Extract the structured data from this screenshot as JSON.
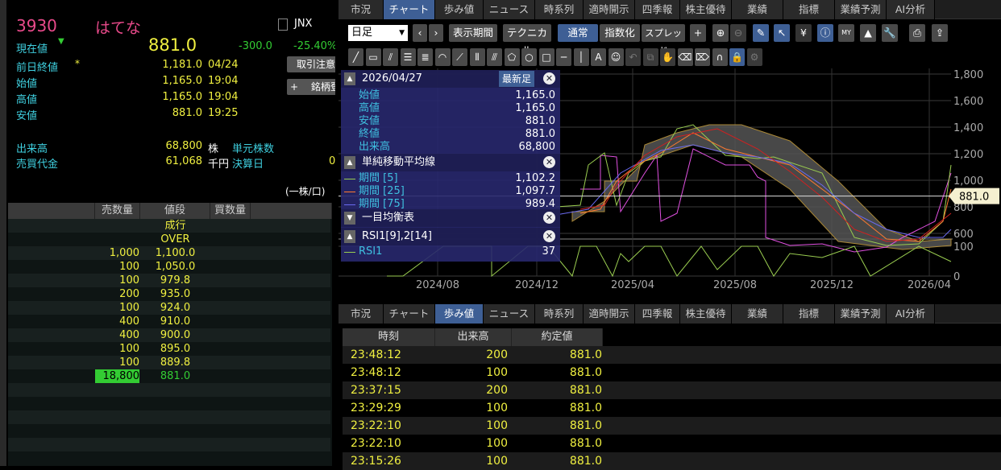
{
  "stock": {
    "code": "3930",
    "name": "はてな",
    "market": "JNX",
    "current_label": "現在値",
    "current": "881.0",
    "change": "-300.0",
    "change_pct": "-25.40%",
    "rows": [
      {
        "label": "前日終値",
        "mark": "*",
        "value": "1,181.0",
        "time": "04/24"
      },
      {
        "label": "始値",
        "value": "1,165.0",
        "time": "19:04"
      },
      {
        "label": "高値",
        "value": "1,165.0",
        "time": "19:04"
      },
      {
        "label": "安値",
        "value": "881.0",
        "time": "19:25"
      }
    ],
    "volume_label": "出来高",
    "volume": "68,800",
    "volume_unit": "株",
    "unit_shares_label": "単元株数",
    "turnover_label": "売買代金",
    "turnover": "61,068",
    "turnover_unit": "千円",
    "settlement_label": "決算日",
    "settlement_value": "0",
    "per_unit": "(一株/口)",
    "btn_caution": "取引注意",
    "btn_register": "+ 　銘柄登録"
  },
  "book": {
    "headers": [
      "売数量",
      "値段",
      "買数量"
    ],
    "rows": [
      [
        "",
        "成行",
        ""
      ],
      [
        "",
        "OVER",
        ""
      ],
      [
        "1,000",
        "1,100.0",
        ""
      ],
      [
        "100",
        "1,050.0",
        ""
      ],
      [
        "100",
        "979.8",
        ""
      ],
      [
        "200",
        "935.0",
        ""
      ],
      [
        "100",
        "924.0",
        ""
      ],
      [
        "400",
        "910.0",
        ""
      ],
      [
        "400",
        "900.0",
        ""
      ],
      [
        "100",
        "895.0",
        ""
      ],
      [
        "100",
        "889.8",
        ""
      ],
      [
        "18,800",
        "881.0",
        ""
      ]
    ]
  },
  "tabs": [
    "市況",
    "チャート",
    "歩み値",
    "ニュース",
    "時系列",
    "適時開示",
    "四季報",
    "株主優待",
    "業績",
    "指標",
    "業績予測",
    "AI分析"
  ],
  "toolbar": {
    "period": "日足",
    "range": "表示期間",
    "technical": "テクニカル",
    "normal": "通常",
    "index": "指数化",
    "spread": "スプレッド"
  },
  "overlay": {
    "date": "2026/04/27",
    "latest": "最新足",
    "ohlc": [
      {
        "k": "始値",
        "v": "1,165.0"
      },
      {
        "k": "高値",
        "v": "1,165.0"
      },
      {
        "k": "安値",
        "v": "881.0"
      },
      {
        "k": "終値",
        "v": "881.0"
      },
      {
        "k": "出来高",
        "v": "68,800"
      }
    ],
    "sma_title": "単純移動平均線",
    "sma": [
      {
        "k": "期間 [5]",
        "v": "1,102.2",
        "color": "#9acd50"
      },
      {
        "k": "期間 [25]",
        "v": "1,097.7",
        "color": "#ff7a30"
      },
      {
        "k": "期間 [75]",
        "v": "989.4",
        "color": "#6a6af0"
      }
    ],
    "ichimoku": "一目均衡表",
    "rsi_title": "RSI1[9],2[14]",
    "rsi_label": "RSI1",
    "rsi_value": "37"
  },
  "chart": {
    "y_ticks": [
      "1,800",
      "1,600",
      "1,400",
      "1,200",
      "1,000",
      "800",
      "600"
    ],
    "rsi_ticks": [
      "100",
      "0"
    ],
    "x_ticks": [
      "2024/08",
      "2024/12",
      "2025/04",
      "2025/08",
      "2025/12",
      "2026/04"
    ],
    "last_price": "881.0"
  },
  "trades": {
    "headers": [
      "時刻",
      "出来高",
      "約定値"
    ],
    "rows": [
      [
        "23:48:12",
        "200",
        "881.0"
      ],
      [
        "23:48:12",
        "100",
        "881.0"
      ],
      [
        "23:37:15",
        "200",
        "881.0"
      ],
      [
        "23:29:29",
        "100",
        "881.0"
      ],
      [
        "23:22:10",
        "100",
        "881.0"
      ],
      [
        "23:22:10",
        "100",
        "881.0"
      ],
      [
        "23:15:26",
        "100",
        "881.0"
      ]
    ]
  }
}
